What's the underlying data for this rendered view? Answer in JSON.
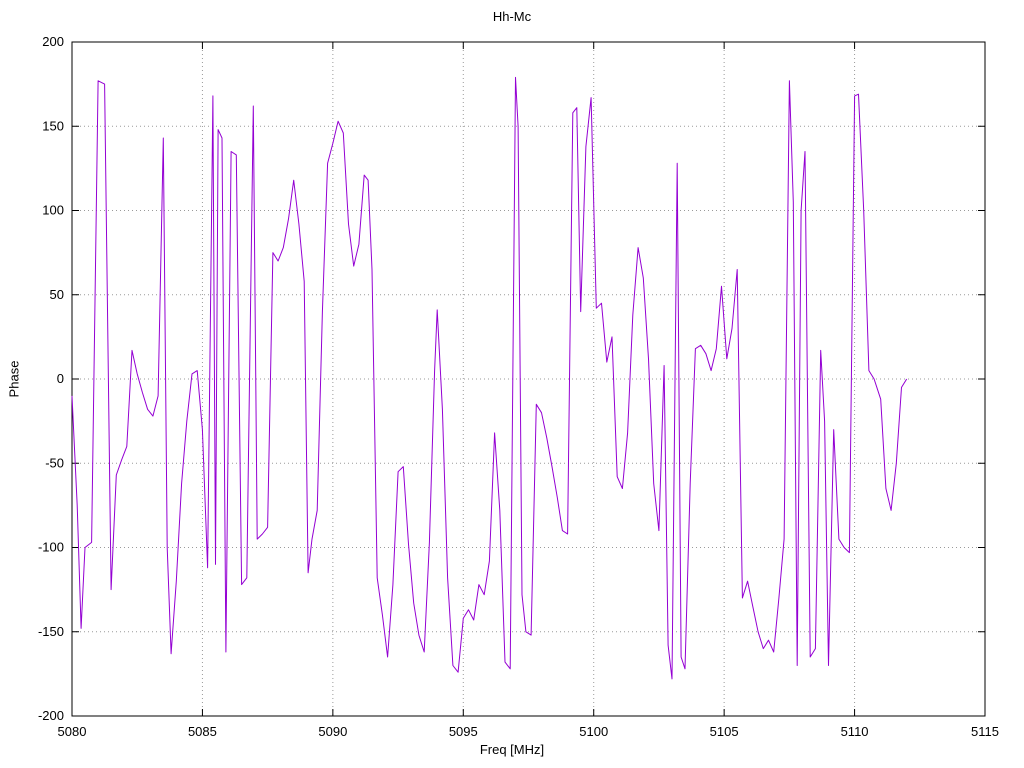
{
  "chart_data": {
    "type": "line",
    "title": "Hh-Mc",
    "xlabel": "Freq [MHz]",
    "ylabel": "Phase",
    "xlim": [
      5080,
      5115
    ],
    "ylim": [
      -200,
      200
    ],
    "x_ticks": [
      5080,
      5085,
      5090,
      5095,
      5100,
      5105,
      5110,
      5115
    ],
    "y_ticks": [
      -200,
      -150,
      -100,
      -50,
      0,
      50,
      100,
      150,
      200
    ],
    "grid": true,
    "legend_position": "none",
    "line_color": "#9400d3",
    "series": [
      {
        "name": "phase",
        "points": [
          [
            5080.0,
            -10
          ],
          [
            5080.2,
            -75
          ],
          [
            5080.35,
            -148
          ],
          [
            5080.5,
            -100
          ],
          [
            5080.75,
            -97
          ],
          [
            5081.0,
            177
          ],
          [
            5081.25,
            175
          ],
          [
            5081.5,
            -125
          ],
          [
            5081.7,
            -57
          ],
          [
            5081.9,
            -48
          ],
          [
            5082.1,
            -40
          ],
          [
            5082.3,
            17
          ],
          [
            5082.5,
            3
          ],
          [
            5082.7,
            -8
          ],
          [
            5082.9,
            -18
          ],
          [
            5083.1,
            -22
          ],
          [
            5083.3,
            -10
          ],
          [
            5083.5,
            143
          ],
          [
            5083.65,
            -100
          ],
          [
            5083.8,
            -163
          ],
          [
            5084.0,
            -120
          ],
          [
            5084.2,
            -62
          ],
          [
            5084.4,
            -25
          ],
          [
            5084.6,
            3
          ],
          [
            5084.8,
            5
          ],
          [
            5085.0,
            -30
          ],
          [
            5085.2,
            -112
          ],
          [
            5085.4,
            168
          ],
          [
            5085.5,
            -110
          ],
          [
            5085.6,
            148
          ],
          [
            5085.75,
            143
          ],
          [
            5085.9,
            -162
          ],
          [
            5086.1,
            135
          ],
          [
            5086.3,
            133
          ],
          [
            5086.5,
            -122
          ],
          [
            5086.7,
            -118
          ],
          [
            5086.95,
            162
          ],
          [
            5087.1,
            -95
          ],
          [
            5087.3,
            -92
          ],
          [
            5087.5,
            -88
          ],
          [
            5087.7,
            75
          ],
          [
            5087.9,
            70
          ],
          [
            5088.1,
            78
          ],
          [
            5088.3,
            95
          ],
          [
            5088.5,
            118
          ],
          [
            5088.7,
            92
          ],
          [
            5088.9,
            58
          ],
          [
            5089.05,
            -115
          ],
          [
            5089.2,
            -95
          ],
          [
            5089.4,
            -78
          ],
          [
            5089.6,
            40
          ],
          [
            5089.8,
            128
          ],
          [
            5090.0,
            140
          ],
          [
            5090.2,
            153
          ],
          [
            5090.4,
            146
          ],
          [
            5090.6,
            92
          ],
          [
            5090.8,
            67
          ],
          [
            5091.0,
            80
          ],
          [
            5091.2,
            121
          ],
          [
            5091.35,
            118
          ],
          [
            5091.5,
            65
          ],
          [
            5091.7,
            -118
          ],
          [
            5091.9,
            -140
          ],
          [
            5092.1,
            -165
          ],
          [
            5092.3,
            -122
          ],
          [
            5092.5,
            -55
          ],
          [
            5092.7,
            -52
          ],
          [
            5092.9,
            -98
          ],
          [
            5093.1,
            -133
          ],
          [
            5093.3,
            -152
          ],
          [
            5093.5,
            -162
          ],
          [
            5093.7,
            -97
          ],
          [
            5093.9,
            5
          ],
          [
            5094.0,
            41
          ],
          [
            5094.2,
            -18
          ],
          [
            5094.4,
            -118
          ],
          [
            5094.6,
            -170
          ],
          [
            5094.8,
            -174
          ],
          [
            5095.0,
            -142
          ],
          [
            5095.2,
            -137
          ],
          [
            5095.4,
            -143
          ],
          [
            5095.6,
            -122
          ],
          [
            5095.8,
            -128
          ],
          [
            5096.0,
            -108
          ],
          [
            5096.2,
            -32
          ],
          [
            5096.4,
            -78
          ],
          [
            5096.6,
            -168
          ],
          [
            5096.8,
            -172
          ],
          [
            5097.0,
            179
          ],
          [
            5097.1,
            150
          ],
          [
            5097.25,
            -128
          ],
          [
            5097.4,
            -150
          ],
          [
            5097.6,
            -152
          ],
          [
            5097.8,
            -15
          ],
          [
            5098.0,
            -20
          ],
          [
            5098.2,
            -35
          ],
          [
            5098.4,
            -52
          ],
          [
            5098.6,
            -70
          ],
          [
            5098.8,
            -90
          ],
          [
            5099.0,
            -92
          ],
          [
            5099.2,
            158
          ],
          [
            5099.35,
            161
          ],
          [
            5099.5,
            40
          ],
          [
            5099.7,
            138
          ],
          [
            5099.9,
            167
          ],
          [
            5100.1,
            42
          ],
          [
            5100.3,
            45
          ],
          [
            5100.5,
            10
          ],
          [
            5100.7,
            25
          ],
          [
            5100.9,
            -58
          ],
          [
            5101.1,
            -65
          ],
          [
            5101.3,
            -32
          ],
          [
            5101.5,
            38
          ],
          [
            5101.7,
            78
          ],
          [
            5101.9,
            60
          ],
          [
            5102.1,
            12
          ],
          [
            5102.3,
            -62
          ],
          [
            5102.5,
            -90
          ],
          [
            5102.7,
            8
          ],
          [
            5102.85,
            -158
          ],
          [
            5103.0,
            -178
          ],
          [
            5103.2,
            128
          ],
          [
            5103.35,
            -165
          ],
          [
            5103.5,
            -172
          ],
          [
            5103.7,
            -62
          ],
          [
            5103.9,
            18
          ],
          [
            5104.1,
            20
          ],
          [
            5104.3,
            15
          ],
          [
            5104.5,
            5
          ],
          [
            5104.7,
            18
          ],
          [
            5104.9,
            55
          ],
          [
            5105.1,
            12
          ],
          [
            5105.3,
            30
          ],
          [
            5105.5,
            65
          ],
          [
            5105.7,
            -130
          ],
          [
            5105.9,
            -120
          ],
          [
            5106.1,
            -135
          ],
          [
            5106.3,
            -150
          ],
          [
            5106.5,
            -160
          ],
          [
            5106.7,
            -155
          ],
          [
            5106.9,
            -162
          ],
          [
            5107.1,
            -130
          ],
          [
            5107.3,
            -95
          ],
          [
            5107.5,
            177
          ],
          [
            5107.65,
            105
          ],
          [
            5107.8,
            -170
          ],
          [
            5107.95,
            100
          ],
          [
            5108.1,
            135
          ],
          [
            5108.3,
            -165
          ],
          [
            5108.5,
            -160
          ],
          [
            5108.7,
            17
          ],
          [
            5108.85,
            -25
          ],
          [
            5109.0,
            -170
          ],
          [
            5109.2,
            -30
          ],
          [
            5109.4,
            -95
          ],
          [
            5109.6,
            -100
          ],
          [
            5109.8,
            -103
          ],
          [
            5110.0,
            168
          ],
          [
            5110.15,
            169
          ],
          [
            5110.35,
            100
          ],
          [
            5110.55,
            5
          ],
          [
            5110.75,
            0
          ],
          [
            5111.0,
            -12
          ],
          [
            5111.2,
            -65
          ],
          [
            5111.4,
            -78
          ],
          [
            5111.6,
            -50
          ],
          [
            5111.8,
            -5
          ],
          [
            5112.0,
            0
          ]
        ]
      }
    ]
  }
}
